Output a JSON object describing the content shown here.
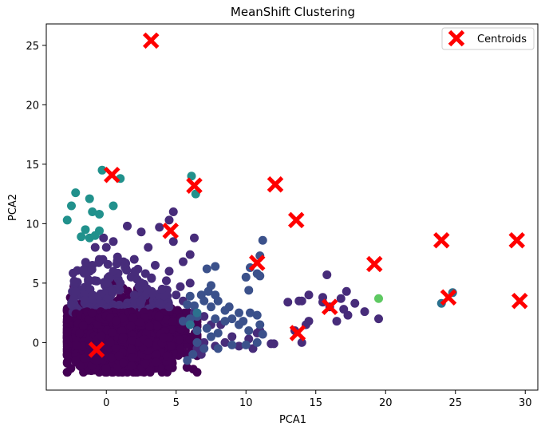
{
  "chart_data": {
    "type": "scatter",
    "title": "MeanShift Clustering",
    "xlabel": "PCA1",
    "ylabel": "PCA2",
    "xlim": [
      -4.3,
      30.9
    ],
    "ylim": [
      -4.0,
      26.8
    ],
    "xticks": [
      0,
      5,
      10,
      15,
      20,
      25,
      30
    ],
    "yticks": [
      0,
      5,
      10,
      15,
      20,
      25
    ],
    "legend": {
      "position": "top-right",
      "entries": [
        "Centroids"
      ]
    },
    "grid": false,
    "cluster_colors": {
      "c0": "#440154",
      "c1": "#472c7a",
      "c2": "#3b518b",
      "c3": "#2c718e",
      "c4": "#21918c",
      "c5": "#5ec962"
    },
    "centroid_color": "#ff0000",
    "dense_region_c0": {
      "x_range": [
        -2.8,
        6.5
      ],
      "y_range": [
        -2.5,
        5.5
      ]
    },
    "dense_region_c1": {
      "x_range": [
        -2.5,
        4.5
      ],
      "y_range": [
        2.5,
        8.5
      ]
    },
    "points": {
      "c1": [
        [
          1.5,
          9.8
        ],
        [
          2.5,
          9.3
        ],
        [
          3.8,
          9.7
        ],
        [
          4.8,
          11.0
        ],
        [
          4.5,
          10.3
        ],
        [
          6.3,
          8.8
        ],
        [
          4.8,
          8.5
        ],
        [
          3.0,
          8.0
        ],
        [
          2.0,
          7.0
        ],
        [
          0.8,
          7.2
        ],
        [
          3.5,
          6.5
        ],
        [
          4.5,
          6.0
        ],
        [
          5.5,
          6.8
        ],
        [
          6.0,
          7.4
        ],
        [
          5.3,
          4.7
        ],
        [
          6.0,
          5.0
        ],
        [
          4.3,
          5.2
        ],
        [
          3.8,
          3.3
        ],
        [
          4.5,
          3.0
        ],
        [
          5.5,
          3.5
        ],
        [
          6.3,
          2.5
        ],
        [
          7.0,
          2.2
        ],
        [
          7.5,
          1.5
        ],
        [
          8.2,
          1.5
        ],
        [
          9.0,
          0.5
        ],
        [
          8.5,
          0.0
        ],
        [
          9.5,
          -0.3
        ],
        [
          10.2,
          0.3
        ],
        [
          10.8,
          0.8
        ],
        [
          11.0,
          1.0
        ],
        [
          10.5,
          -0.5
        ],
        [
          7.0,
          0.0
        ],
        [
          7.8,
          -0.3
        ],
        [
          6.5,
          -0.5
        ],
        [
          6.8,
          -1.0
        ],
        [
          11.8,
          -0.1
        ],
        [
          13.0,
          3.4
        ],
        [
          13.8,
          3.5
        ],
        [
          14.0,
          3.5
        ],
        [
          14.5,
          4.0
        ],
        [
          15.8,
          5.7
        ],
        [
          16.0,
          3.0
        ],
        [
          15.5,
          3.4
        ],
        [
          16.8,
          3.7
        ],
        [
          17.0,
          2.8
        ],
        [
          16.5,
          1.8
        ],
        [
          17.3,
          2.3
        ],
        [
          17.8,
          3.3
        ],
        [
          18.5,
          2.6
        ],
        [
          19.5,
          2.0
        ],
        [
          17.2,
          4.3
        ],
        [
          15.5,
          3.8
        ],
        [
          14.3,
          1.5
        ],
        [
          14.5,
          1.8
        ],
        [
          12.0,
          -0.1
        ],
        [
          14.0,
          0.0
        ],
        [
          13.5,
          1.0
        ],
        [
          5.0,
          4.0
        ],
        [
          4.0,
          4.5
        ],
        [
          2.8,
          5.8
        ],
        [
          3.3,
          4.2
        ],
        [
          2.0,
          4.0
        ],
        [
          1.0,
          5.0
        ],
        [
          0.5,
          6.0
        ],
        [
          -0.5,
          7.0
        ],
        [
          -0.8,
          8.0
        ],
        [
          0.0,
          8.0
        ],
        [
          0.5,
          8.5
        ],
        [
          -0.2,
          8.8
        ],
        [
          -1.0,
          6.5
        ]
      ],
      "c2": [
        [
          11.2,
          8.6
        ],
        [
          11.0,
          7.3
        ],
        [
          10.3,
          6.3
        ],
        [
          10.8,
          5.8
        ],
        [
          11.0,
          5.6
        ],
        [
          10.0,
          5.5
        ],
        [
          10.2,
          4.4
        ],
        [
          6.8,
          4.0
        ],
        [
          7.0,
          3.5
        ],
        [
          7.3,
          4.3
        ],
        [
          7.5,
          4.8
        ],
        [
          7.2,
          6.2
        ],
        [
          7.8,
          6.4
        ],
        [
          7.8,
          4.0
        ],
        [
          8.5,
          2.7
        ],
        [
          8.8,
          3.0
        ],
        [
          9.5,
          2.5
        ],
        [
          9.0,
          2.0
        ],
        [
          8.5,
          1.8
        ],
        [
          7.8,
          2.0
        ],
        [
          9.8,
          1.8
        ],
        [
          10.8,
          2.3
        ],
        [
          10.3,
          2.5
        ],
        [
          11.0,
          1.5
        ],
        [
          11.2,
          0.7
        ],
        [
          10.2,
          1.0
        ],
        [
          9.5,
          1.5
        ],
        [
          8.0,
          0.8
        ],
        [
          7.5,
          0.5
        ],
        [
          6.5,
          1.0
        ],
        [
          6.0,
          1.5
        ],
        [
          6.5,
          0.0
        ],
        [
          7.0,
          -0.5
        ],
        [
          8.0,
          -0.5
        ],
        [
          9.0,
          -0.2
        ],
        [
          10.0,
          -0.2
        ],
        [
          10.8,
          0.0
        ],
        [
          6.0,
          2.0
        ],
        [
          6.5,
          2.2
        ],
        [
          7.2,
          1.2
        ],
        [
          5.8,
          3.2
        ],
        [
          6.0,
          3.9
        ],
        [
          6.3,
          3.1
        ],
        [
          7.5,
          3.0
        ],
        [
          8.0,
          3.5
        ],
        [
          6.2,
          -1.0
        ],
        [
          5.8,
          -1.5
        ],
        [
          5.5,
          1.8
        ]
      ],
      "c3": [
        [
          24.8,
          4.2
        ],
        [
          24.0,
          3.3
        ],
        [
          6.0,
          1.5
        ],
        [
          6.5,
          2.5
        ]
      ],
      "c4": [
        [
          -0.3,
          14.5
        ],
        [
          1.0,
          13.8
        ],
        [
          6.1,
          14.0
        ],
        [
          6.4,
          12.5
        ],
        [
          -2.2,
          12.6
        ],
        [
          -1.2,
          12.1
        ],
        [
          -2.5,
          11.5
        ],
        [
          -1.0,
          11.0
        ],
        [
          -0.5,
          10.8
        ],
        [
          0.5,
          11.5
        ],
        [
          -2.8,
          10.3
        ],
        [
          -1.5,
          9.5
        ],
        [
          -0.5,
          9.4
        ],
        [
          -1.8,
          8.9
        ],
        [
          -1.2,
          8.8
        ],
        [
          -0.8,
          9.0
        ]
      ],
      "c5": [
        [
          19.5,
          3.7
        ]
      ]
    },
    "centroids": [
      [
        3.2,
        25.4
      ],
      [
        0.4,
        14.1
      ],
      [
        6.3,
        13.2
      ],
      [
        12.1,
        13.3
      ],
      [
        4.6,
        9.4
      ],
      [
        13.6,
        10.3
      ],
      [
        10.8,
        6.7
      ],
      [
        19.2,
        6.6
      ],
      [
        24.0,
        8.6
      ],
      [
        29.4,
        8.6
      ],
      [
        24.5,
        3.8
      ],
      [
        29.6,
        3.5
      ],
      [
        16.0,
        3.0
      ],
      [
        13.7,
        0.8
      ],
      [
        -0.7,
        -0.6
      ]
    ]
  }
}
